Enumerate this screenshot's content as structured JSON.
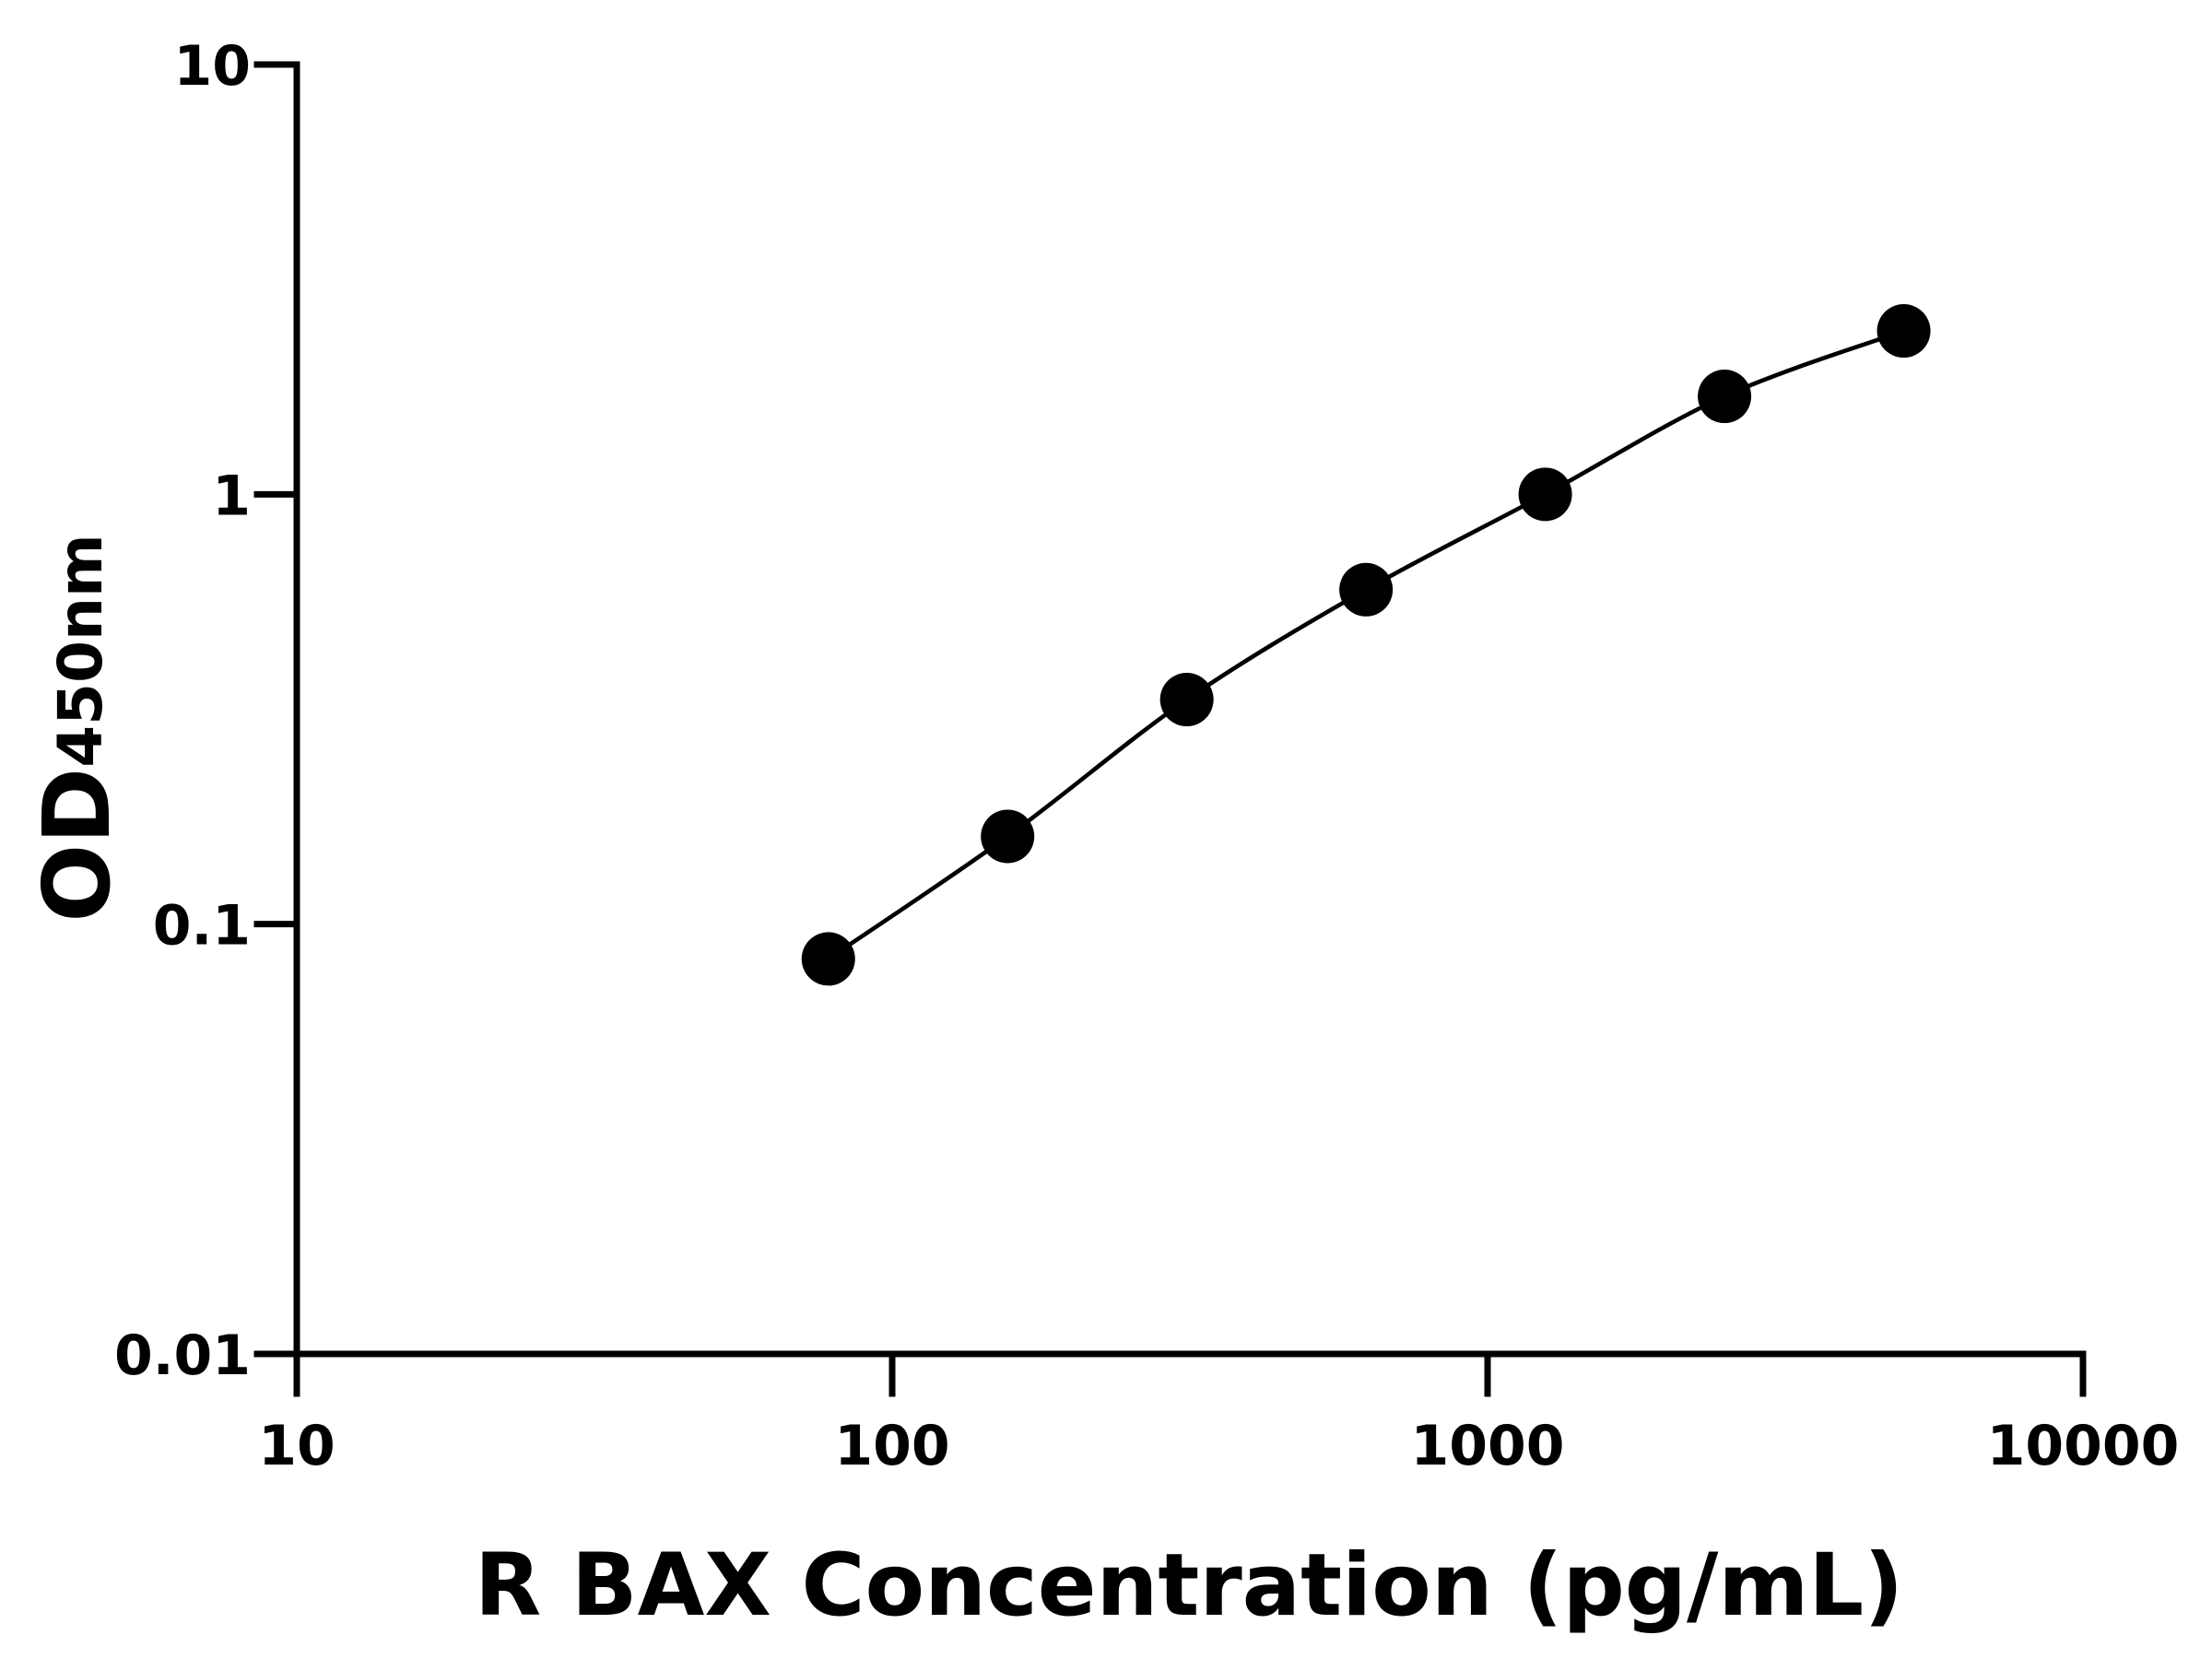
{
  "chart_data": {
    "type": "scatter",
    "x_label": "R BAX Concentration (pg/mL)",
    "y_label": "OD",
    "y_label_subscript": "450nm",
    "x": [
      78.125,
      156.25,
      312.5,
      625,
      1250,
      2500,
      5000
    ],
    "series": [
      {
        "color": "#000000",
        "values": [
          0.083,
          0.16,
          0.333,
          0.6,
          1.0,
          1.69,
          2.4
        ]
      }
    ],
    "log_x": true,
    "log_y": true,
    "xlim": [
      10,
      10000
    ],
    "xticks": [
      10,
      100,
      1000,
      10000
    ],
    "ylim": [
      0.01,
      10
    ],
    "yticks": [
      0.01,
      0.1,
      1,
      10
    ],
    "fit_line": true
  }
}
